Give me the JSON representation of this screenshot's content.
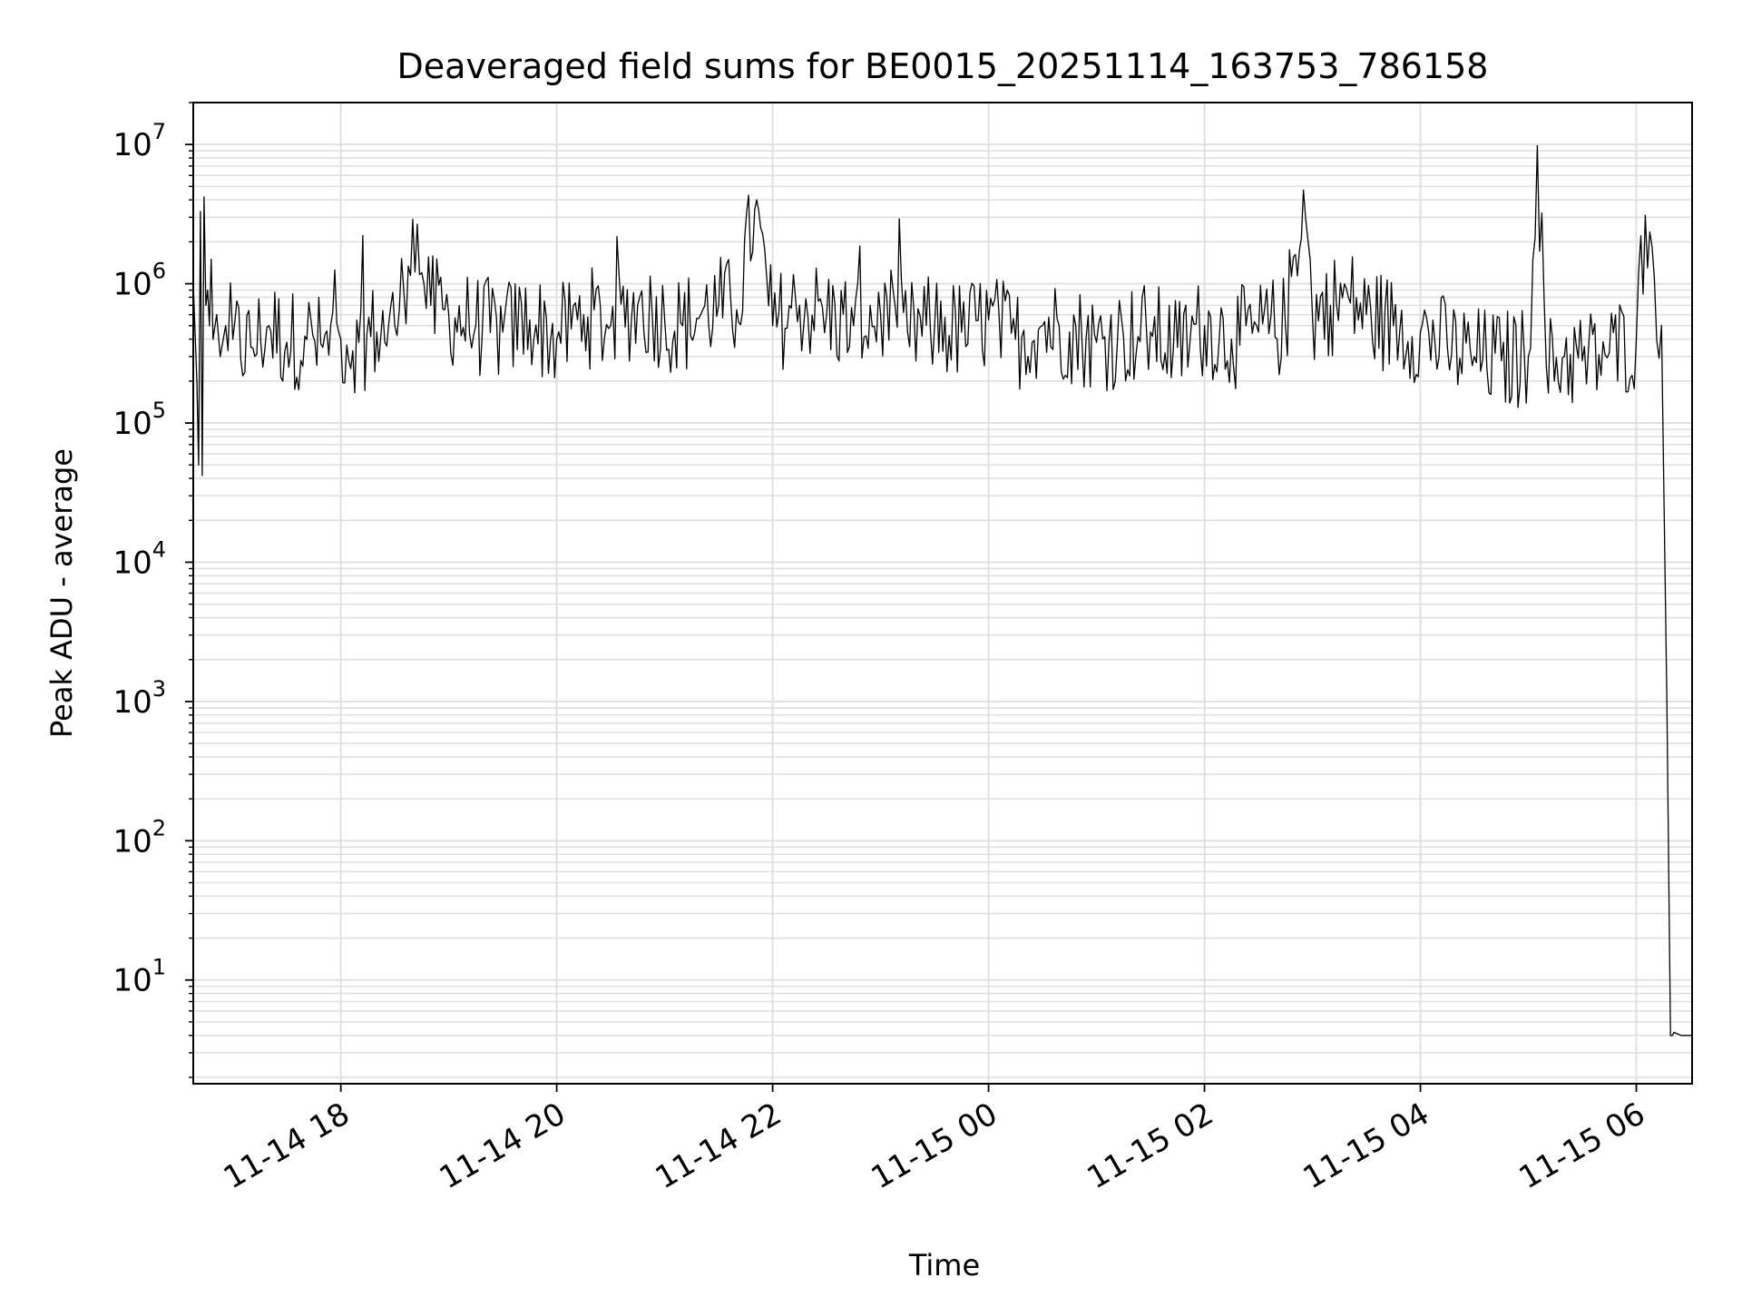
{
  "chart_data": {
    "type": "line",
    "title": "Deaveraged field sums for BE0015_20251114_163753_786158",
    "xlabel": "Time",
    "ylabel": "Peak ADU - average",
    "yscale": "log",
    "ylim": [
      1.8,
      20000000
    ],
    "xlim": [
      "2025-11-14 16:38",
      "2025-11-15 06:31"
    ],
    "grid": true,
    "line_color": "#000000",
    "grid_color": "#e0e0e0",
    "x_tick_labels": [
      "11-14 18",
      "11-14 20",
      "11-14 22",
      "11-15 00",
      "11-15 02",
      "11-15 04",
      "11-15 06"
    ],
    "x_ticks": [
      "2025-11-14 18:00",
      "2025-11-14 20:00",
      "2025-11-14 22:00",
      "2025-11-15 00:00",
      "2025-11-15 02:00",
      "2025-11-15 04:00",
      "2025-11-15 06:00"
    ],
    "y_ticks": [
      10,
      100,
      1000,
      10000,
      100000,
      1000000,
      10000000
    ],
    "y_tick_labels": [
      {
        "base": "10",
        "exp": "1"
      },
      {
        "base": "10",
        "exp": "2"
      },
      {
        "base": "10",
        "exp": "3"
      },
      {
        "base": "10",
        "exp": "4"
      },
      {
        "base": "10",
        "exp": "5"
      },
      {
        "base": "10",
        "exp": "6"
      },
      {
        "base": "10",
        "exp": "7"
      }
    ],
    "series": [
      {
        "x": [
          "2025-11-14 16:38",
          "2025-11-14 16:40",
          "2025-11-14 16:41",
          "2025-11-14 16:42",
          "2025-11-14 16:43",
          "2025-11-14 16:44",
          "2025-11-14 16:45",
          "2025-11-14 16:46",
          "2025-11-14 16:47",
          "2025-11-14 16:48",
          "2025-11-14 16:49",
          "2025-11-14 16:51",
          "2025-11-14 16:53",
          "2025-11-14 16:56",
          "2025-11-14 17:00",
          "2025-11-14 17:10",
          "2025-11-14 17:20",
          "2025-11-14 17:30",
          "2025-11-14 17:40",
          "2025-11-14 17:50",
          "2025-11-14 18:00",
          "2025-11-14 18:10",
          "2025-11-14 18:20",
          "2025-11-14 18:30",
          "2025-11-14 18:35",
          "2025-11-14 18:40",
          "2025-11-14 18:45",
          "2025-11-14 18:50",
          "2025-11-14 19:00",
          "2025-11-14 19:15",
          "2025-11-14 19:30",
          "2025-11-14 19:45",
          "2025-11-14 20:00",
          "2025-11-14 20:15",
          "2025-11-14 20:30",
          "2025-11-14 20:45",
          "2025-11-14 21:00",
          "2025-11-14 21:10",
          "2025-11-14 21:20",
          "2025-11-14 21:30",
          "2025-11-14 21:40",
          "2025-11-14 21:50",
          "2025-11-14 22:00",
          "2025-11-14 22:15",
          "2025-11-14 22:30",
          "2025-11-14 22:45",
          "2025-11-14 23:00",
          "2025-11-14 23:15",
          "2025-11-14 23:30",
          "2025-11-14 23:45",
          "2025-11-15 00:00",
          "2025-11-15 00:15",
          "2025-11-15 00:30",
          "2025-11-15 00:45",
          "2025-11-15 01:00",
          "2025-11-15 01:15",
          "2025-11-15 01:30",
          "2025-11-15 01:45",
          "2025-11-15 02:00",
          "2025-11-15 02:15",
          "2025-11-15 02:30",
          "2025-11-15 02:45",
          "2025-11-15 02:55",
          "2025-11-15 03:00",
          "2025-11-15 03:10",
          "2025-11-15 03:20",
          "2025-11-15 03:30",
          "2025-11-15 03:45",
          "2025-11-15 04:00",
          "2025-11-15 04:15",
          "2025-11-15 04:30",
          "2025-11-15 04:45",
          "2025-11-15 05:00",
          "2025-11-15 05:05",
          "2025-11-15 05:10",
          "2025-11-15 05:20",
          "2025-11-15 05:30",
          "2025-11-15 05:45",
          "2025-11-15 06:00",
          "2025-11-15 06:05",
          "2025-11-15 06:10",
          "2025-11-15 06:14",
          "2025-11-15 06:17",
          "2025-11-15 06:19",
          "2025-11-15 06:20",
          "2025-11-15 06:21",
          "2025-11-15 06:25",
          "2025-11-15 06:31"
        ],
        "y": [
          1000000,
          200000,
          50000,
          3300000,
          42000,
          4200000,
          700000,
          900000,
          500000,
          1500000,
          400000,
          600000,
          300000,
          500000,
          400000,
          350000,
          500000,
          380000,
          420000,
          350000,
          400000,
          380000,
          450000,
          500000,
          900000,
          2900000,
          1200000,
          700000,
          600000,
          500000,
          450000,
          550000,
          400000,
          600000,
          500000,
          700000,
          550000,
          500000,
          600000,
          700000,
          650000,
          3400000,
          500000,
          700000,
          600000,
          500000,
          600000,
          450000,
          500000,
          450000,
          550000,
          400000,
          500000,
          450000,
          380000,
          420000,
          450000,
          350000,
          500000,
          400000,
          450000,
          500000,
          4700000,
          600000,
          700000,
          800000,
          600000,
          500000,
          450000,
          350000,
          300000,
          280000,
          300000,
          9800000,
          250000,
          300000,
          280000,
          320000,
          400000,
          3100000,
          1100000,
          500000,
          1000,
          4,
          4,
          4.2,
          4,
          4
        ]
      }
    ]
  }
}
